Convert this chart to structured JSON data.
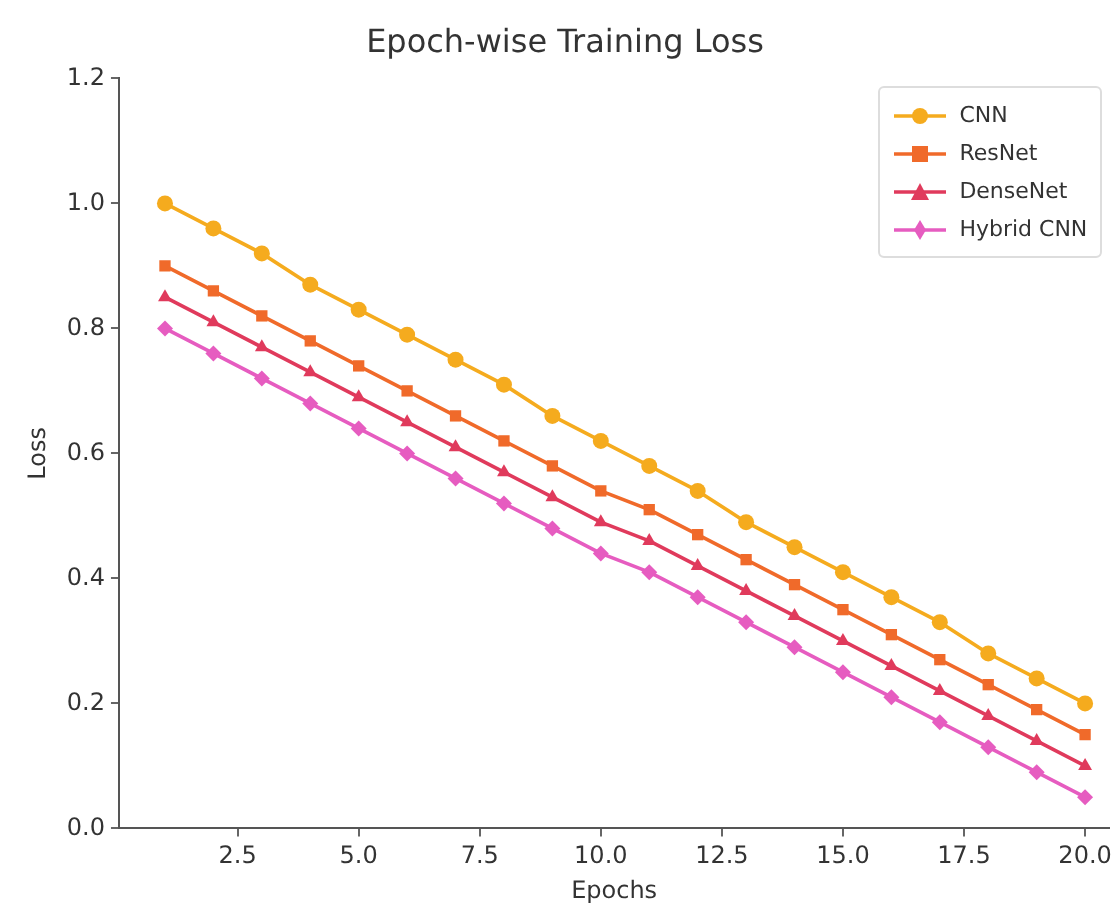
{
  "chart_data": {
    "type": "line",
    "title": "Epoch-wise Training Loss",
    "xlabel": "Epochs",
    "ylabel": "Loss",
    "x": [
      1,
      2,
      3,
      4,
      5,
      6,
      7,
      8,
      9,
      10,
      11,
      12,
      13,
      14,
      15,
      16,
      17,
      18,
      19,
      20
    ],
    "series": [
      {
        "name": "CNN",
        "color": "#f5ab1e",
        "marker": "circle",
        "values": [
          1.0,
          0.96,
          0.92,
          0.87,
          0.83,
          0.79,
          0.75,
          0.71,
          0.66,
          0.62,
          0.58,
          0.54,
          0.49,
          0.45,
          0.41,
          0.37,
          0.33,
          0.28,
          0.24,
          0.2
        ]
      },
      {
        "name": "ResNet",
        "color": "#f06a2a",
        "marker": "square",
        "values": [
          0.9,
          0.86,
          0.82,
          0.78,
          0.74,
          0.7,
          0.66,
          0.62,
          0.58,
          0.54,
          0.51,
          0.47,
          0.43,
          0.39,
          0.35,
          0.31,
          0.27,
          0.23,
          0.19,
          0.15
        ]
      },
      {
        "name": "DenseNet",
        "color": "#e03a5c",
        "marker": "triangle",
        "values": [
          0.85,
          0.81,
          0.77,
          0.73,
          0.69,
          0.65,
          0.61,
          0.57,
          0.53,
          0.49,
          0.46,
          0.42,
          0.38,
          0.34,
          0.3,
          0.26,
          0.22,
          0.18,
          0.14,
          0.1
        ]
      },
      {
        "name": "Hybrid CNN",
        "color": "#e65cc0",
        "marker": "diamond",
        "values": [
          0.8,
          0.76,
          0.72,
          0.68,
          0.64,
          0.6,
          0.56,
          0.52,
          0.48,
          0.44,
          0.41,
          0.37,
          0.33,
          0.29,
          0.25,
          0.21,
          0.17,
          0.13,
          0.09,
          0.05
        ]
      }
    ],
    "xlim": [
      0.05,
      20.5
    ],
    "xticks": [
      {
        "value": 2.5,
        "label": "2.5"
      },
      {
        "value": 5,
        "label": "5.0"
      },
      {
        "value": 7.5,
        "label": "7.5"
      },
      {
        "value": 10,
        "label": "10.0"
      },
      {
        "value": 12.5,
        "label": "12.5"
      },
      {
        "value": 15,
        "label": "15.0"
      },
      {
        "value": 17.5,
        "label": "17.5"
      },
      {
        "value": 20,
        "label": "20.0"
      }
    ],
    "ylim": [
      0,
      1.2
    ],
    "yticks": [
      {
        "value": 0,
        "label": "0.0"
      },
      {
        "value": 0.2,
        "label": "0.2"
      },
      {
        "value": 0.4,
        "label": "0.4"
      },
      {
        "value": 0.6,
        "label": "0.6"
      },
      {
        "value": 0.8,
        "label": "0.8"
      },
      {
        "value": 1,
        "label": "1.0"
      },
      {
        "value": 1.2,
        "label": "1.2"
      }
    ],
    "grid": false,
    "legend": "top right",
    "line_style": "solid"
  }
}
